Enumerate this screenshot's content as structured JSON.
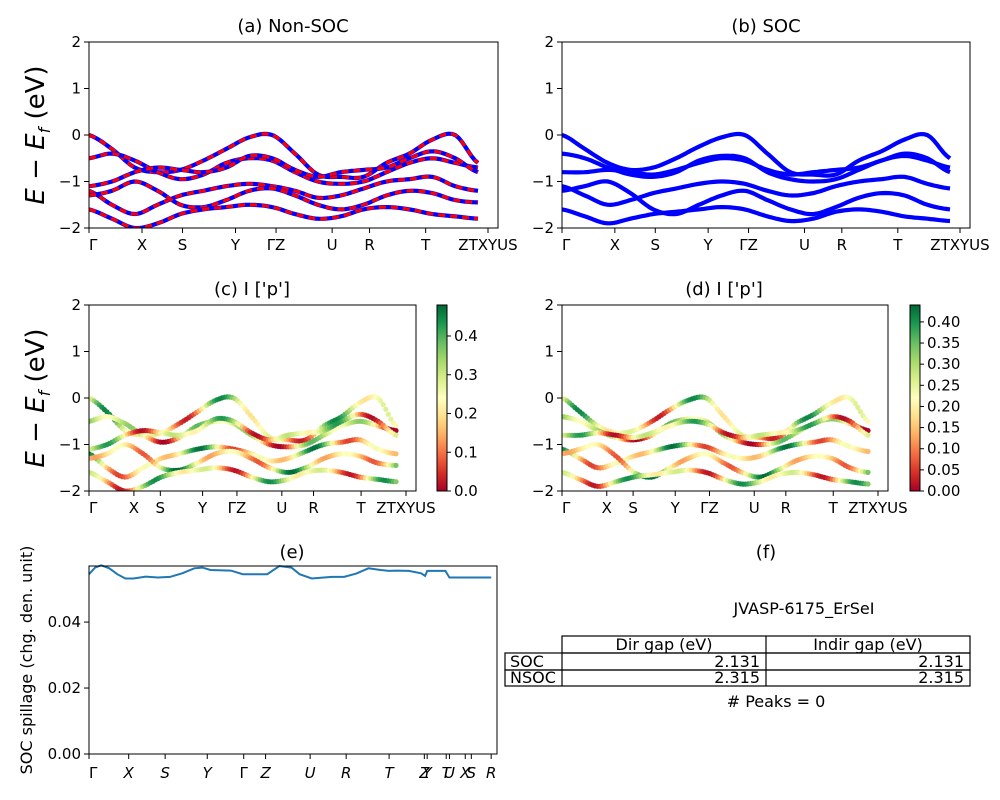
{
  "chart_data": [
    {
      "id": "a",
      "type": "line",
      "title": "(a) Non-SOC",
      "ylabel_main": "E − E",
      "ylabel_sub": "f",
      "ylabel_unit": " (eV)",
      "ylim": [
        -2,
        2
      ],
      "yticks": [
        "−2",
        "−1",
        "0",
        "1",
        "2"
      ],
      "kpoint_labels": [
        "Γ",
        "X",
        "S",
        "Y",
        "ΓZ",
        "U",
        "R",
        "T",
        "ZTXYUS"
      ],
      "kpoint_positions": [
        0,
        0.17,
        0.3,
        0.47,
        0.6,
        0.78,
        0.9,
        1.08,
        1.28
      ],
      "series": [
        {
          "color": "#0000ff",
          "style": "solid"
        },
        {
          "color": "#ff0000",
          "style": "dashed"
        }
      ],
      "bands": [
        [
          0.0,
          -0.3,
          -0.7,
          -0.8,
          -0.75,
          -0.55,
          -0.3,
          -0.05,
          0.0,
          -0.4,
          -0.85,
          -0.9,
          -0.9,
          -0.6,
          -0.4,
          -0.1,
          0.0,
          -0.6
        ],
        [
          -0.5,
          -0.4,
          -0.55,
          -0.8,
          -0.95,
          -0.85,
          -0.6,
          -0.5,
          -0.55,
          -0.8,
          -1.0,
          -1.05,
          -1.0,
          -0.8,
          -0.6,
          -0.5,
          -0.6,
          -0.7
        ],
        [
          -1.1,
          -1.0,
          -0.8,
          -0.7,
          -0.75,
          -0.8,
          -0.7,
          -0.45,
          -0.5,
          -0.75,
          -0.9,
          -0.8,
          -0.75,
          -0.7,
          -0.5,
          -0.35,
          -0.5,
          -0.8
        ],
        [
          -1.2,
          -1.5,
          -1.7,
          -1.5,
          -1.3,
          -1.2,
          -1.1,
          -1.05,
          -1.1,
          -1.2,
          -1.35,
          -1.3,
          -1.15,
          -1.0,
          -0.95,
          -0.9,
          -1.1,
          -1.2
        ],
        [
          -1.3,
          -1.2,
          -1.0,
          -1.2,
          -1.5,
          -1.55,
          -1.4,
          -1.2,
          -1.15,
          -1.3,
          -1.5,
          -1.6,
          -1.5,
          -1.3,
          -1.2,
          -1.25,
          -1.4,
          -1.45
        ],
        [
          -1.6,
          -1.8,
          -2.0,
          -1.9,
          -1.7,
          -1.6,
          -1.55,
          -1.5,
          -1.55,
          -1.7,
          -1.8,
          -1.75,
          -1.6,
          -1.55,
          -1.6,
          -1.7,
          -1.75,
          -1.8
        ]
      ]
    },
    {
      "id": "b",
      "type": "line",
      "title": "(b) SOC",
      "ylim": [
        -2,
        2
      ],
      "yticks": [
        "−2",
        "−1",
        "0",
        "1",
        "2"
      ],
      "kpoint_labels": [
        "Γ",
        "X",
        "S",
        "Y",
        "ΓZ",
        "U",
        "R",
        "T",
        "ZTXYUS"
      ],
      "kpoint_positions": [
        0,
        0.17,
        0.3,
        0.47,
        0.6,
        0.78,
        0.9,
        1.08,
        1.28
      ],
      "series": [
        {
          "color": "#0000ff",
          "style": "solid"
        }
      ],
      "bands": [
        [
          0.0,
          -0.3,
          -0.6,
          -0.75,
          -0.7,
          -0.5,
          -0.25,
          -0.05,
          0.0,
          -0.4,
          -0.8,
          -0.85,
          -0.85,
          -0.55,
          -0.35,
          -0.1,
          0.0,
          -0.5
        ],
        [
          -0.4,
          -0.5,
          -0.7,
          -0.85,
          -0.9,
          -0.8,
          -0.55,
          -0.45,
          -0.5,
          -0.8,
          -0.95,
          -1.0,
          -0.95,
          -0.75,
          -0.55,
          -0.45,
          -0.55,
          -0.7
        ],
        [
          -0.8,
          -0.8,
          -0.75,
          -0.8,
          -0.85,
          -0.75,
          -0.6,
          -0.5,
          -0.55,
          -0.75,
          -0.85,
          -0.8,
          -0.75,
          -0.7,
          -0.55,
          -0.4,
          -0.5,
          -0.8
        ],
        [
          -1.1,
          -1.3,
          -1.5,
          -1.4,
          -1.25,
          -1.15,
          -1.05,
          -1.0,
          -1.05,
          -1.2,
          -1.3,
          -1.25,
          -1.1,
          -1.0,
          -0.95,
          -0.9,
          -1.05,
          -1.15
        ],
        [
          -1.2,
          -1.1,
          -1.0,
          -1.25,
          -1.6,
          -1.7,
          -1.5,
          -1.3,
          -1.2,
          -1.4,
          -1.6,
          -1.7,
          -1.55,
          -1.35,
          -1.25,
          -1.3,
          -1.5,
          -1.6
        ],
        [
          -1.6,
          -1.75,
          -1.9,
          -1.8,
          -1.7,
          -1.65,
          -1.6,
          -1.55,
          -1.6,
          -1.75,
          -1.85,
          -1.8,
          -1.65,
          -1.6,
          -1.65,
          -1.75,
          -1.8,
          -1.85
        ]
      ]
    },
    {
      "id": "c",
      "type": "scatter",
      "title": "(c)  I ['p']",
      "ylabel_main": "E − E",
      "ylabel_sub": "f",
      "ylabel_unit": " (eV)",
      "ylim": [
        -2,
        2
      ],
      "yticks": [
        "−2",
        "−1",
        "0",
        "1",
        "2"
      ],
      "kpoint_labels": [
        "Γ",
        "X",
        "S",
        "Y",
        "ΓZ",
        "U",
        "R",
        "T",
        "ZTXYUS"
      ],
      "kpoint_positions": [
        0,
        0.17,
        0.27,
        0.43,
        0.56,
        0.73,
        0.85,
        1.03,
        1.2
      ],
      "colorbar": {
        "ticks": [
          "0.0",
          "0.1",
          "0.2",
          "0.3",
          "0.4"
        ],
        "min": 0,
        "max": 0.48
      },
      "bands": [
        [
          0.0,
          -0.3,
          -0.7,
          -0.8,
          -0.75,
          -0.55,
          -0.3,
          -0.05,
          0.0,
          -0.4,
          -0.85,
          -0.9,
          -0.9,
          -0.6,
          -0.4,
          -0.1,
          0.0,
          -0.6
        ],
        [
          -0.5,
          -0.4,
          -0.55,
          -0.8,
          -0.95,
          -0.85,
          -0.6,
          -0.5,
          -0.55,
          -0.8,
          -1.0,
          -1.05,
          -1.0,
          -0.8,
          -0.6,
          -0.5,
          -0.6,
          -0.7
        ],
        [
          -1.1,
          -1.0,
          -0.8,
          -0.7,
          -0.75,
          -0.8,
          -0.7,
          -0.45,
          -0.5,
          -0.75,
          -0.9,
          -0.8,
          -0.75,
          -0.7,
          -0.5,
          -0.35,
          -0.5,
          -0.8
        ],
        [
          -1.2,
          -1.5,
          -1.7,
          -1.5,
          -1.3,
          -1.2,
          -1.1,
          -1.05,
          -1.1,
          -1.2,
          -1.35,
          -1.3,
          -1.15,
          -1.0,
          -0.95,
          -0.9,
          -1.1,
          -1.2
        ],
        [
          -1.3,
          -1.2,
          -1.0,
          -1.2,
          -1.5,
          -1.55,
          -1.4,
          -1.2,
          -1.15,
          -1.3,
          -1.5,
          -1.6,
          -1.5,
          -1.3,
          -1.2,
          -1.25,
          -1.4,
          -1.45
        ],
        [
          -1.6,
          -1.8,
          -2.0,
          -1.9,
          -1.7,
          -1.6,
          -1.55,
          -1.5,
          -1.55,
          -1.7,
          -1.8,
          -1.75,
          -1.6,
          -1.55,
          -1.6,
          -1.7,
          -1.75,
          -1.8
        ]
      ]
    },
    {
      "id": "d",
      "type": "scatter",
      "title": "(d) I ['p']",
      "ylim": [
        -2,
        2
      ],
      "yticks": [
        "−2",
        "−1",
        "0",
        "1",
        "2"
      ],
      "kpoint_labels": [
        "Γ",
        "X",
        "S",
        "Y",
        "ΓZ",
        "U",
        "R",
        "T",
        "ZTXYUS"
      ],
      "kpoint_positions": [
        0,
        0.17,
        0.27,
        0.43,
        0.56,
        0.73,
        0.85,
        1.03,
        1.2
      ],
      "colorbar": {
        "ticks": [
          "0.00",
          "0.05",
          "0.10",
          "0.15",
          "0.20",
          "0.25",
          "0.30",
          "0.35",
          "0.40"
        ],
        "min": 0,
        "max": 0.44
      },
      "bands": [
        [
          0.0,
          -0.3,
          -0.6,
          -0.75,
          -0.7,
          -0.5,
          -0.25,
          -0.05,
          0.0,
          -0.4,
          -0.8,
          -0.85,
          -0.85,
          -0.55,
          -0.35,
          -0.1,
          0.0,
          -0.5
        ],
        [
          -0.4,
          -0.5,
          -0.7,
          -0.85,
          -0.9,
          -0.8,
          -0.55,
          -0.45,
          -0.5,
          -0.8,
          -0.95,
          -1.0,
          -0.95,
          -0.75,
          -0.55,
          -0.45,
          -0.55,
          -0.7
        ],
        [
          -0.8,
          -0.8,
          -0.75,
          -0.8,
          -0.85,
          -0.75,
          -0.6,
          -0.5,
          -0.55,
          -0.75,
          -0.85,
          -0.8,
          -0.75,
          -0.7,
          -0.55,
          -0.4,
          -0.5,
          -0.8
        ],
        [
          -1.1,
          -1.3,
          -1.5,
          -1.4,
          -1.25,
          -1.15,
          -1.05,
          -1.0,
          -1.05,
          -1.2,
          -1.3,
          -1.25,
          -1.1,
          -1.0,
          -0.95,
          -0.9,
          -1.05,
          -1.15
        ],
        [
          -1.2,
          -1.1,
          -1.0,
          -1.25,
          -1.6,
          -1.7,
          -1.5,
          -1.3,
          -1.2,
          -1.4,
          -1.6,
          -1.7,
          -1.55,
          -1.35,
          -1.25,
          -1.3,
          -1.5,
          -1.6
        ],
        [
          -1.6,
          -1.75,
          -1.9,
          -1.8,
          -1.7,
          -1.65,
          -1.6,
          -1.55,
          -1.6,
          -1.75,
          -1.85,
          -1.8,
          -1.65,
          -1.6,
          -1.65,
          -1.75,
          -1.8,
          -1.85
        ]
      ]
    },
    {
      "id": "e",
      "type": "line",
      "title": "(e)",
      "ylabel": "SOC spillage (chg. den. unit)",
      "ylim": [
        0,
        0.057
      ],
      "yticks": [
        {
          "v": 0,
          "label": "0.00"
        },
        {
          "v": 0.02,
          "label": "0.02"
        },
        {
          "v": 0.04,
          "label": "0.04"
        }
      ],
      "kpoint_labels": [
        "Γ",
        "X",
        "S",
        "Y",
        "Γ",
        "Z",
        "U",
        "R",
        "T",
        "Z",
        "Y",
        "T",
        "U",
        "X",
        "S",
        "R"
      ],
      "kpoint_positions": [
        0.0,
        0.098,
        0.188,
        0.292,
        0.382,
        0.436,
        0.546,
        0.635,
        0.741,
        0.828,
        0.835,
        0.882,
        0.89,
        0.929,
        0.944,
        0.993
      ],
      "x": [
        0.0,
        0.015,
        0.03,
        0.05,
        0.07,
        0.09,
        0.11,
        0.14,
        0.17,
        0.2,
        0.23,
        0.26,
        0.28,
        0.3,
        0.32,
        0.35,
        0.38,
        0.41,
        0.44,
        0.47,
        0.5,
        0.52,
        0.55,
        0.58,
        0.6,
        0.63,
        0.66,
        0.69,
        0.72,
        0.74,
        0.76,
        0.79,
        0.82,
        0.83,
        0.835,
        0.88,
        0.89,
        0.9,
        0.93,
        0.96,
        0.993
      ],
      "values": [
        0.0545,
        0.0565,
        0.0572,
        0.0563,
        0.0545,
        0.0532,
        0.0532,
        0.0538,
        0.0535,
        0.0537,
        0.0548,
        0.0563,
        0.0565,
        0.0558,
        0.0557,
        0.0556,
        0.0545,
        0.0545,
        0.0545,
        0.057,
        0.0565,
        0.0545,
        0.0532,
        0.0535,
        0.0537,
        0.0537,
        0.0547,
        0.0563,
        0.0558,
        0.0555,
        0.0556,
        0.0555,
        0.0548,
        0.054,
        0.0555,
        0.0555,
        0.0535,
        0.0535,
        0.0535,
        0.0535,
        0.0535
      ],
      "color": "#1f77b4"
    }
  ],
  "table": {
    "title": "(f)",
    "caption": "JVASP-6175_ErSeI",
    "columns": [
      "",
      "Dir gap (eV)",
      "Indir gap (eV)"
    ],
    "rows": [
      {
        "name": "SOC",
        "dir": "2.131",
        "indir": "2.131"
      },
      {
        "name": "NSOC",
        "dir": "2.315",
        "indir": "2.315"
      }
    ],
    "footer": "# Peaks = 0"
  }
}
